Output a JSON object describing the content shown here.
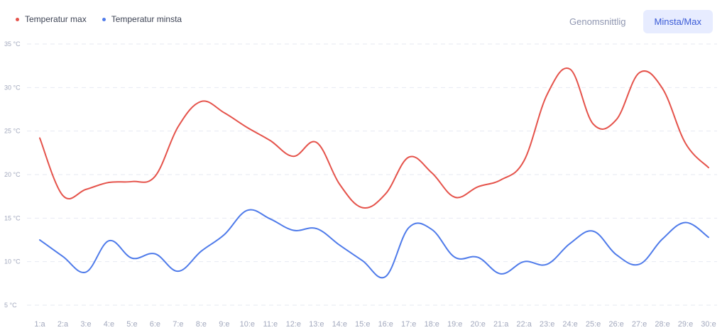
{
  "legend": {
    "max_label": "Temperatur max",
    "min_label": "Temperatur minsta"
  },
  "toggle": {
    "average_label": "Genomsnittlig",
    "minmax_label": "Minsta/Max",
    "active": "minmax"
  },
  "colors": {
    "max": "#e5534b",
    "min": "#4f7bea",
    "grid": "#e6e9f2",
    "tick": "#a2a8bd"
  },
  "chart_data": {
    "type": "line",
    "categories": [
      "1:a",
      "2:a",
      "3:e",
      "4:e",
      "5:e",
      "6:e",
      "7:e",
      "8:e",
      "9:e",
      "10:e",
      "11:e",
      "12:e",
      "13:e",
      "14:e",
      "15:e",
      "16:e",
      "17:e",
      "18:e",
      "19:e",
      "20:e",
      "21:a",
      "22:a",
      "23:e",
      "24:e",
      "25:e",
      "26:e",
      "27:e",
      "28:e",
      "29:e",
      "30:e"
    ],
    "series": [
      {
        "name": "Temperatur max",
        "color": "#e5534b",
        "values": [
          24.2,
          17.6,
          18.3,
          19.1,
          19.2,
          19.8,
          25.5,
          28.4,
          27.1,
          25.4,
          23.9,
          22.1,
          23.7,
          18.9,
          16.2,
          17.8,
          22.0,
          20.2,
          17.4,
          18.6,
          19.4,
          21.6,
          29.2,
          32.1,
          25.8,
          26.3,
          31.7,
          29.9,
          23.6,
          20.8
        ]
      },
      {
        "name": "Temperatur minsta",
        "color": "#4f7bea",
        "values": [
          12.5,
          10.6,
          8.8,
          12.4,
          10.4,
          10.9,
          8.9,
          11.2,
          13.1,
          15.9,
          14.9,
          13.6,
          13.8,
          11.9,
          10.1,
          8.3,
          13.9,
          13.7,
          10.5,
          10.5,
          8.6,
          10.0,
          9.7,
          12.1,
          13.5,
          10.8,
          9.7,
          12.6,
          14.5,
          12.8
        ]
      }
    ],
    "yticks": [
      "35 °C",
      "30 °C",
      "25 °C",
      "20 °C",
      "15 °C",
      "10 °C",
      "5 °C"
    ],
    "ytick_values": [
      35,
      30,
      25,
      20,
      15,
      10,
      5
    ],
    "ylim": [
      5,
      35
    ],
    "grid": true,
    "legend_position": "top-left"
  }
}
